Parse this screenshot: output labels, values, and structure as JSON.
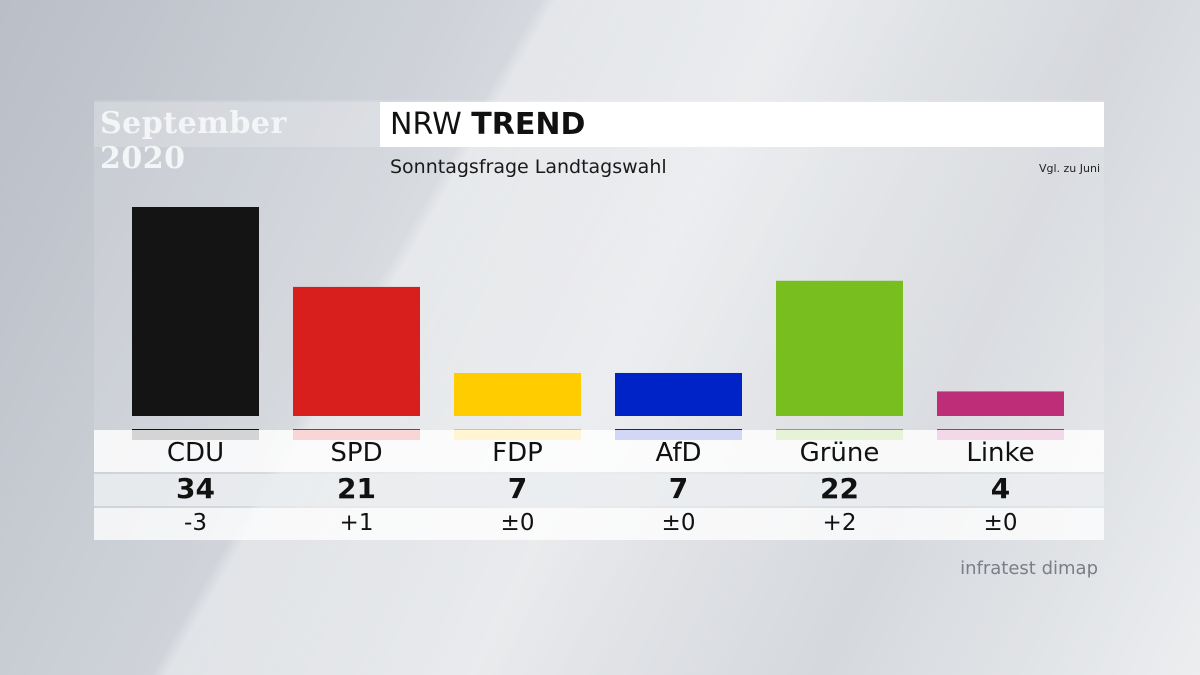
{
  "header": {
    "date_label": "September 2020",
    "title_regular": "NRW ",
    "title_bold": "TREND",
    "subtitle": "Sonntagsfrage Landtagswahl",
    "comparison_note": "Vgl. zu Juni"
  },
  "source": "infratest dimap",
  "chart_data": {
    "type": "bar",
    "title": "NRW TREND",
    "subtitle": "Sonntagsfrage Landtagswahl",
    "categories": [
      "CDU",
      "SPD",
      "FDP",
      "AfD",
      "Grüne",
      "Linke"
    ],
    "values": [
      34,
      21,
      7,
      7,
      22,
      4
    ],
    "value_labels": [
      "34",
      "21",
      "7",
      "7",
      "22",
      "4"
    ],
    "changes": [
      "-3",
      "+1",
      "±0",
      "±0",
      "+2",
      "±0"
    ],
    "change_reference": "Vgl. zu Juni",
    "colors": [
      "#141414",
      "#d91e1e",
      "#ffcc00",
      "#0023c8",
      "#78be1e",
      "#be2d78"
    ],
    "ylim": [
      0,
      34
    ],
    "grid": false
  }
}
